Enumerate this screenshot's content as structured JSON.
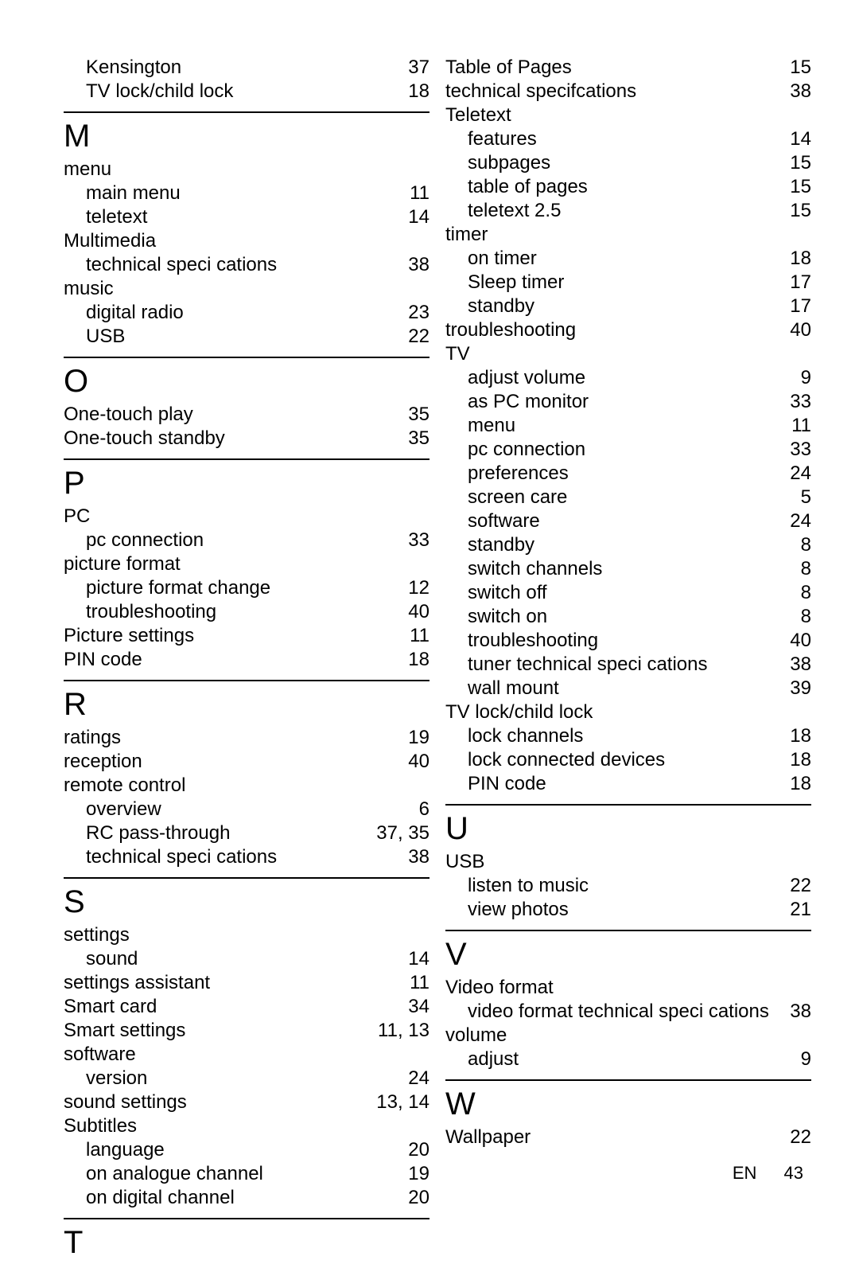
{
  "footer": {
    "lang": "EN",
    "page": "43"
  },
  "left": [
    {
      "t": "sub",
      "label": "Kensington",
      "page": "37"
    },
    {
      "t": "sub",
      "label": "TV lock/child lock",
      "page": "18"
    },
    {
      "t": "hr"
    },
    {
      "t": "letter",
      "label": "M"
    },
    {
      "t": "head",
      "label": "menu"
    },
    {
      "t": "sub",
      "label": "main menu",
      "page": "11"
    },
    {
      "t": "sub",
      "label": "teletext",
      "page": "14"
    },
    {
      "t": "head",
      "label": "Multimedia"
    },
    {
      "t": "sub",
      "label": "technical speci cations",
      "page": "38"
    },
    {
      "t": "head",
      "label": "music"
    },
    {
      "t": "sub",
      "label": "digital radio",
      "page": "23"
    },
    {
      "t": "sub",
      "label": "USB",
      "page": "22"
    },
    {
      "t": "hr"
    },
    {
      "t": "letter",
      "label": "O"
    },
    {
      "t": "row",
      "label": "One-touch play",
      "page": "35"
    },
    {
      "t": "row",
      "label": "One-touch standby",
      "page": "35"
    },
    {
      "t": "hr"
    },
    {
      "t": "letter",
      "label": "P"
    },
    {
      "t": "head",
      "label": "PC"
    },
    {
      "t": "sub",
      "label": "pc connection",
      "page": "33"
    },
    {
      "t": "head",
      "label": "picture format"
    },
    {
      "t": "sub",
      "label": "picture format change",
      "page": "12"
    },
    {
      "t": "sub",
      "label": "troubleshooting",
      "page": "40"
    },
    {
      "t": "row",
      "label": "Picture settings",
      "page": "11"
    },
    {
      "t": "row",
      "label": "PIN code",
      "page": "18"
    },
    {
      "t": "hr"
    },
    {
      "t": "letter",
      "label": "R"
    },
    {
      "t": "row",
      "label": "ratings",
      "page": "19"
    },
    {
      "t": "row",
      "label": "reception",
      "page": "40"
    },
    {
      "t": "head",
      "label": "remote control"
    },
    {
      "t": "sub",
      "label": "overview",
      "page": "6"
    },
    {
      "t": "sub",
      "label": "RC pass-through",
      "page": "37, 35"
    },
    {
      "t": "sub",
      "label": "technical speci cations",
      "page": "38"
    },
    {
      "t": "hr"
    },
    {
      "t": "letter",
      "label": "S"
    },
    {
      "t": "head",
      "label": "settings"
    },
    {
      "t": "sub",
      "label": "sound",
      "page": "14"
    },
    {
      "t": "row",
      "label": "settings assistant",
      "page": "11"
    },
    {
      "t": "row",
      "label": "Smart card",
      "page": "34"
    },
    {
      "t": "row",
      "label": "Smart settings",
      "page": "11, 13"
    },
    {
      "t": "head",
      "label": "software"
    },
    {
      "t": "sub",
      "label": "version",
      "page": "24"
    },
    {
      "t": "row",
      "label": "sound settings",
      "page": "13, 14"
    },
    {
      "t": "head",
      "label": "Subtitles"
    },
    {
      "t": "sub",
      "label": "language",
      "page": "20"
    },
    {
      "t": "sub",
      "label": "on analogue channel",
      "page": "19"
    },
    {
      "t": "sub",
      "label": "on digital channel",
      "page": "20"
    },
    {
      "t": "hr"
    },
    {
      "t": "letter",
      "label": "T"
    }
  ],
  "right": [
    {
      "t": "row",
      "label": "Table of Pages",
      "page": "15"
    },
    {
      "t": "row",
      "label": "technical specifcations",
      "page": "38"
    },
    {
      "t": "head",
      "label": "Teletext"
    },
    {
      "t": "sub",
      "label": "features",
      "page": "14"
    },
    {
      "t": "sub",
      "label": "subpages",
      "page": "15"
    },
    {
      "t": "sub",
      "label": "table of pages",
      "page": "15"
    },
    {
      "t": "sub",
      "label": "teletext 2.5",
      "page": "15"
    },
    {
      "t": "head",
      "label": "timer"
    },
    {
      "t": "sub",
      "label": "on timer",
      "page": "18"
    },
    {
      "t": "sub",
      "label": "Sleep timer",
      "page": "17"
    },
    {
      "t": "sub",
      "label": "standby",
      "page": "17"
    },
    {
      "t": "row",
      "label": "troubleshooting",
      "page": "40"
    },
    {
      "t": "head",
      "label": "TV"
    },
    {
      "t": "sub",
      "label": "adjust volume",
      "page": "9"
    },
    {
      "t": "sub",
      "label": "as PC monitor",
      "page": "33"
    },
    {
      "t": "sub",
      "label": "menu",
      "page": "11"
    },
    {
      "t": "sub",
      "label": "pc connection",
      "page": "33"
    },
    {
      "t": "sub",
      "label": "preferences",
      "page": "24"
    },
    {
      "t": "sub",
      "label": "screen care",
      "page": "5"
    },
    {
      "t": "sub",
      "label": "software",
      "page": "24"
    },
    {
      "t": "sub",
      "label": "standby",
      "page": "8"
    },
    {
      "t": "sub",
      "label": "switch channels",
      "page": "8"
    },
    {
      "t": "sub",
      "label": "switch off",
      "page": "8"
    },
    {
      "t": "sub",
      "label": "switch on",
      "page": "8"
    },
    {
      "t": "sub",
      "label": "troubleshooting",
      "page": "40"
    },
    {
      "t": "sub",
      "label": "tuner technical speci cations",
      "page": "38"
    },
    {
      "t": "sub",
      "label": "wall mount",
      "page": "39"
    },
    {
      "t": "head",
      "label": "TV lock/child lock"
    },
    {
      "t": "sub",
      "label": "lock channels",
      "page": "18"
    },
    {
      "t": "sub",
      "label": "lock connected devices",
      "page": "18"
    },
    {
      "t": "sub",
      "label": "PIN code",
      "page": "18"
    },
    {
      "t": "hr"
    },
    {
      "t": "letter",
      "label": "U"
    },
    {
      "t": "head",
      "label": "USB"
    },
    {
      "t": "sub",
      "label": "listen to music",
      "page": "22"
    },
    {
      "t": "sub",
      "label": "view photos",
      "page": "21"
    },
    {
      "t": "hr"
    },
    {
      "t": "letter",
      "label": "V"
    },
    {
      "t": "head",
      "label": "Video format"
    },
    {
      "t": "sub",
      "label": "video format technical speci cations",
      "page": "38"
    },
    {
      "t": "head",
      "label": "volume"
    },
    {
      "t": "sub",
      "label": "adjust",
      "page": "9"
    },
    {
      "t": "hr"
    },
    {
      "t": "letter",
      "label": "W"
    },
    {
      "t": "row",
      "label": "Wallpaper",
      "page": "22"
    }
  ]
}
